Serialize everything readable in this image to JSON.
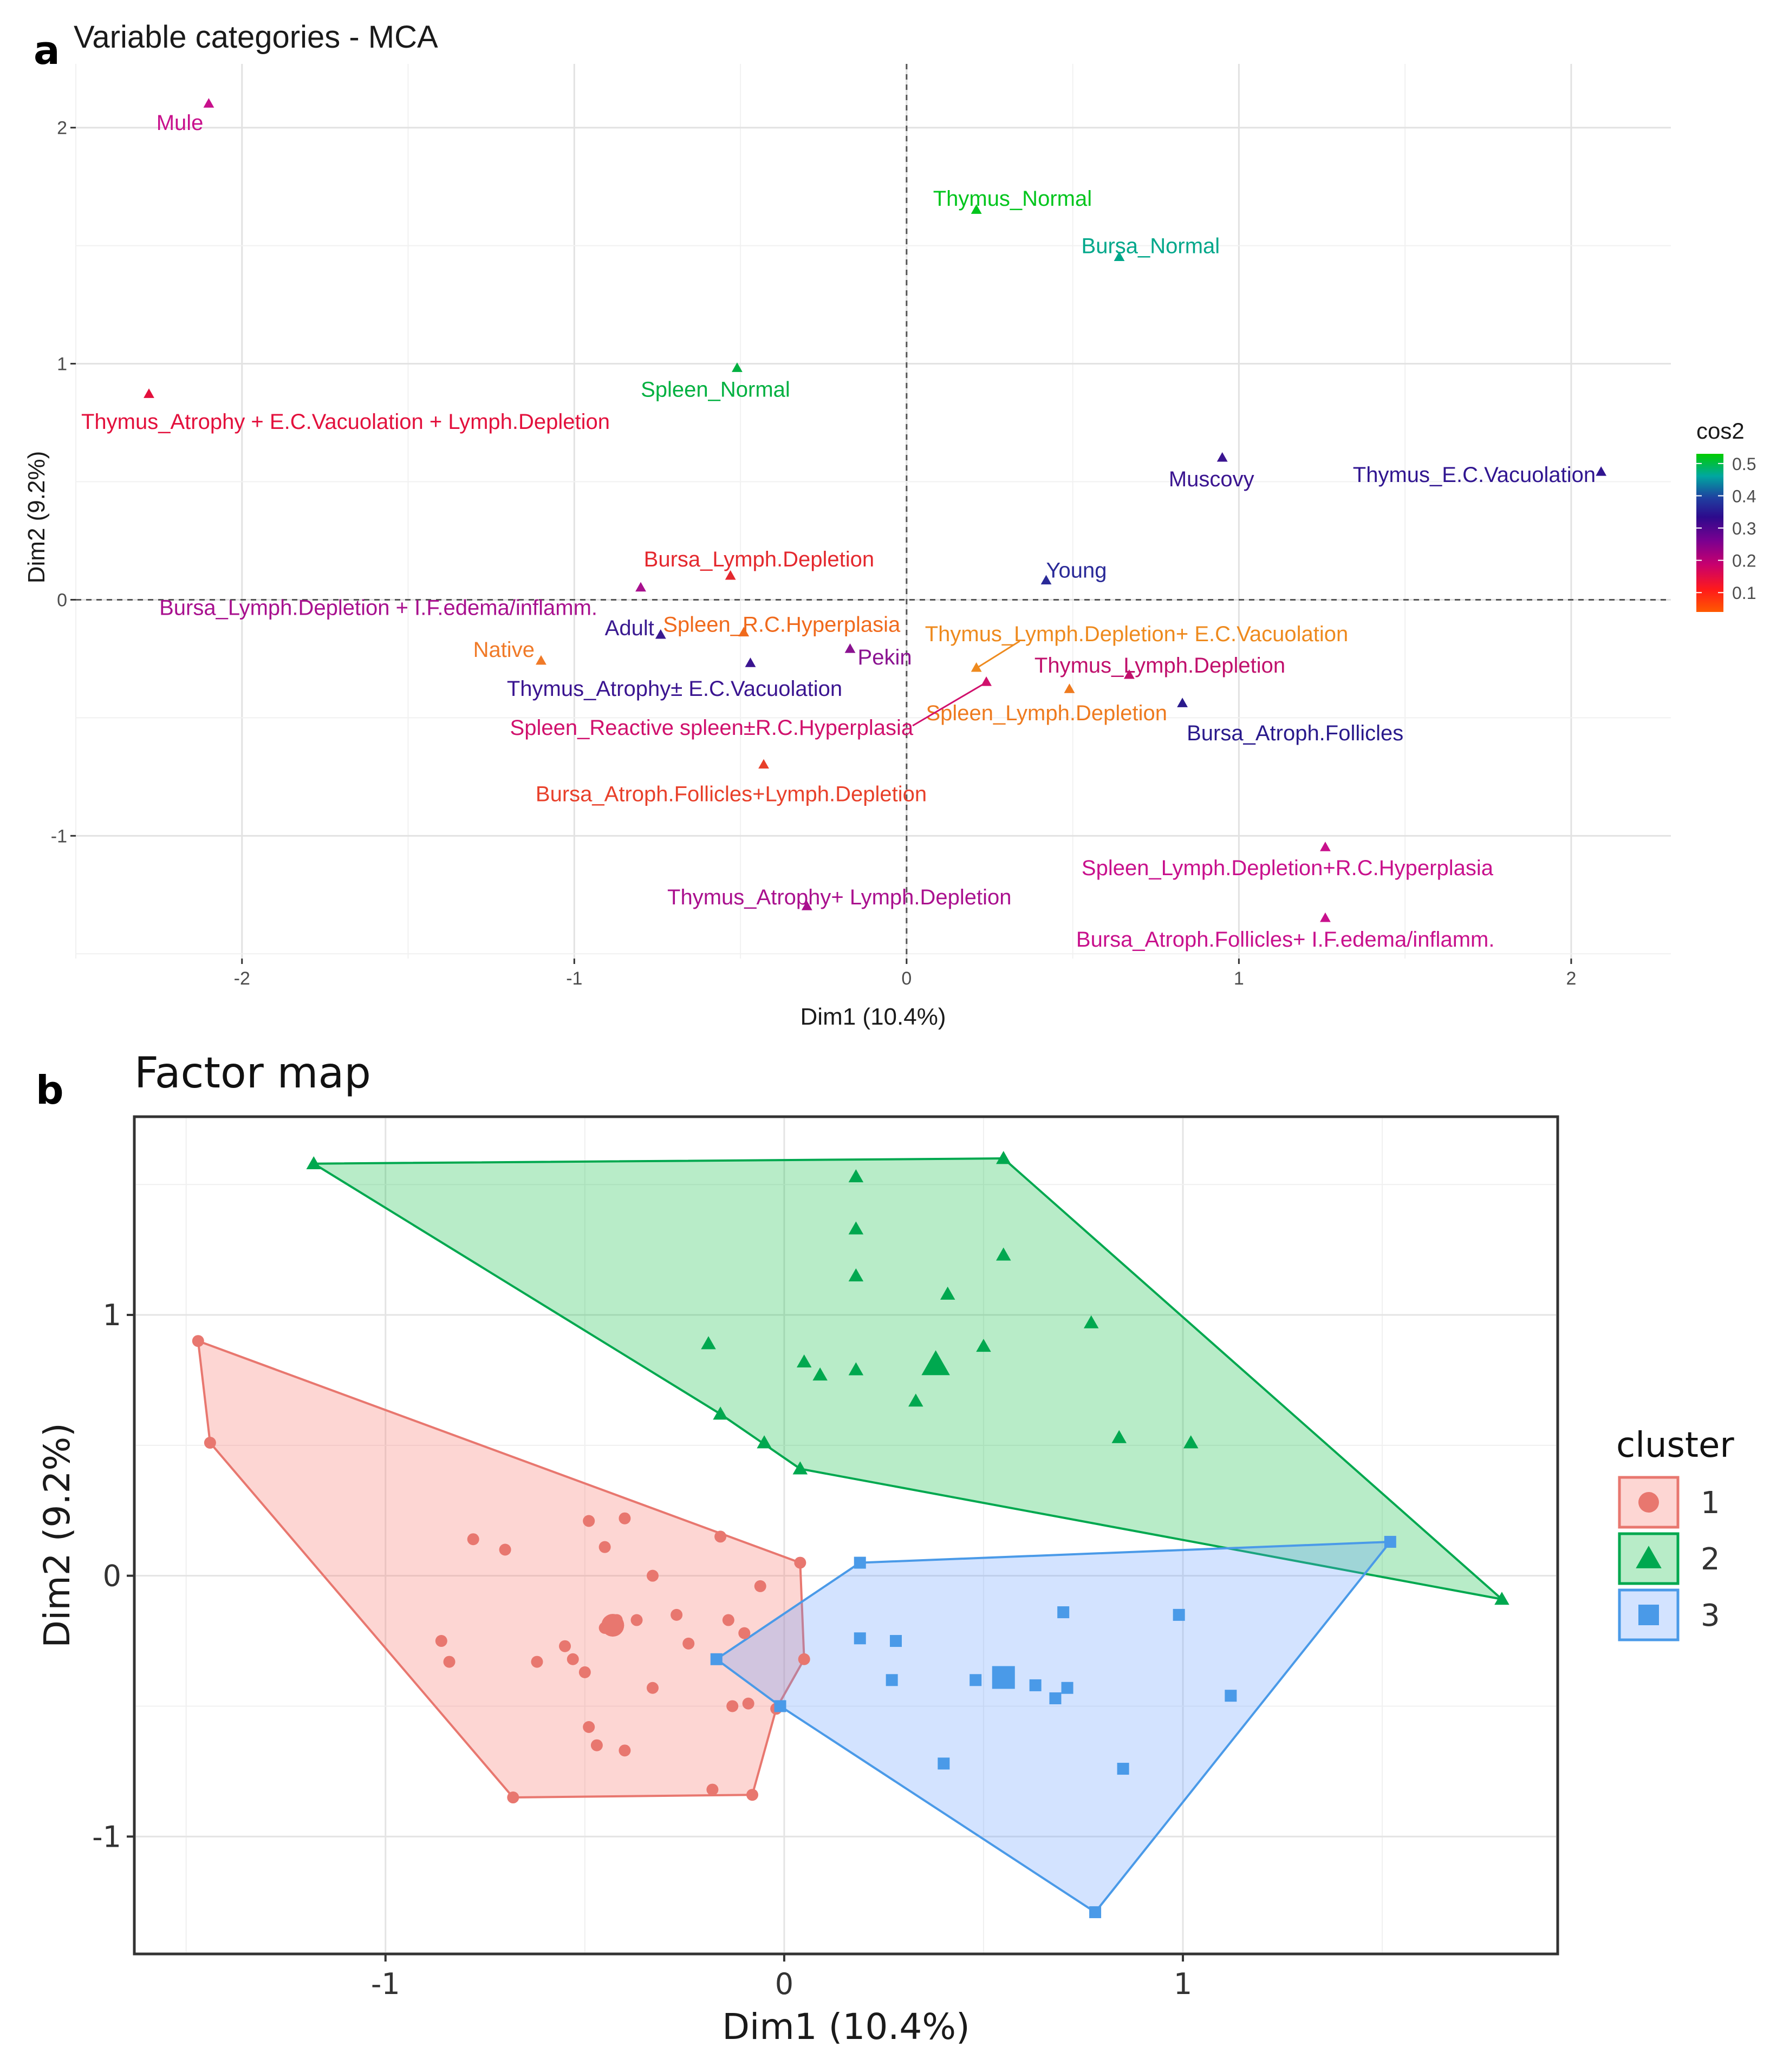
{
  "panel_a_letter": "a",
  "panel_b_letter": "b",
  "chart_data": [
    {
      "type": "scatter",
      "title": "Variable categories - MCA",
      "xlabel": "Dim1 (10.4%)",
      "ylabel": "Dim2 (9.2%)",
      "xlim": [
        -2.5,
        2.3
      ],
      "ylim": [
        -1.52,
        2.27
      ],
      "xticks": [
        -2,
        -1,
        0,
        1,
        2
      ],
      "yticks": [
        -1,
        0,
        1,
        2
      ],
      "grid": true,
      "reference_lines": {
        "x": 0,
        "y": 0,
        "style": "dashed"
      },
      "color_legend": {
        "title": "cos2",
        "ticks": [
          "0.5",
          "0.4",
          "0.3",
          "0.2",
          "0.1"
        ],
        "tick_values": [
          0.5,
          0.4,
          0.3,
          0.2,
          0.1
        ],
        "range": [
          0.04,
          0.53
        ],
        "gradient": [
          "#ff5a00",
          "#ff1a1a",
          "#c8006e",
          "#7a0090",
          "#2d0a8c",
          "#1f3fa0",
          "#00a7a0",
          "#00cc00"
        ]
      },
      "points": [
        {
          "label": "Mule",
          "x": -2.1,
          "y": 2.1,
          "cos2": 0.14,
          "color": "#c8108c"
        },
        {
          "label": "Thymus_Normal",
          "x": 0.21,
          "y": 1.65,
          "cos2": 0.52,
          "color": "#00c51c"
        },
        {
          "label": "Bursa_Normal",
          "x": 0.64,
          "y": 1.45,
          "cos2": 0.47,
          "color": "#00a78a"
        },
        {
          "label": "Spleen_Normal",
          "x": -0.51,
          "y": 0.98,
          "cos2": 0.5,
          "color": "#00b040"
        },
        {
          "label": "Thymus_Atrophy + E.C.Vacuolation + Lymph.Depletion",
          "x": -2.28,
          "y": 0.87,
          "cos2": 0.1,
          "color": "#e3103c"
        },
        {
          "label": "Muscovy",
          "x": 0.95,
          "y": 0.6,
          "cos2": 0.35,
          "color": "#3a1490"
        },
        {
          "label": "Thymus_E.C.Vacuolation",
          "x": 2.09,
          "y": 0.54,
          "cos2": 0.35,
          "color": "#301590"
        },
        {
          "label": "Young",
          "x": 0.42,
          "y": 0.08,
          "cos2": 0.36,
          "color": "#2a2a98"
        },
        {
          "label": "Bursa_Lymph.Depletion",
          "x": -0.53,
          "y": 0.1,
          "cos2": 0.1,
          "color": "#e4282e"
        },
        {
          "label": "Bursa_Lymph.Depletion + I.F.edema/inflamm.",
          "x": -0.8,
          "y": 0.05,
          "cos2": 0.16,
          "color": "#a8108e"
        },
        {
          "label": "Spleen_R.C.Hyperplasia",
          "x": -0.49,
          "y": -0.14,
          "cos2": 0.06,
          "color": "#f06a1c"
        },
        {
          "label": "Thymus_Lymph.Depletion+ E.C.Vacuolation",
          "x": 0.21,
          "y": -0.29,
          "cos2": 0.05,
          "color": "#ee8a1e"
        },
        {
          "label": "Native",
          "x": -1.1,
          "y": -0.26,
          "cos2": 0.06,
          "color": "#f07a28"
        },
        {
          "label": "Adult",
          "x": -0.74,
          "y": -0.15,
          "cos2": 0.33,
          "color": "#3a1a90"
        },
        {
          "label": "Pekin",
          "x": -0.17,
          "y": -0.21,
          "cos2": 0.2,
          "color": "#8a1290"
        },
        {
          "label": "Thymus_Lymph.Depletion",
          "x": 0.67,
          "y": -0.32,
          "cos2": 0.15,
          "color": "#c0106c"
        },
        {
          "label": "Thymus_Atrophy± E.C.Vacuolation",
          "x": -0.47,
          "y": -0.27,
          "cos2": 0.32,
          "color": "#3a1490"
        },
        {
          "label": "Spleen_Lymph.Depletion",
          "x": 0.49,
          "y": -0.38,
          "cos2": 0.07,
          "color": "#ee7a1e"
        },
        {
          "label": "Bursa_Atroph.Follicles",
          "x": 0.83,
          "y": -0.44,
          "cos2": 0.32,
          "color": "#2a1a8c"
        },
        {
          "label": "Spleen_Reactive spleen±R.C.Hyperplasia",
          "x": 0.24,
          "y": -0.35,
          "cos2": 0.14,
          "color": "#d0106c"
        },
        {
          "label": "Bursa_Atroph.Follicles+Lymph.Depletion",
          "x": -0.43,
          "y": -0.7,
          "cos2": 0.08,
          "color": "#e8402a"
        },
        {
          "label": "Spleen_Lymph.Depletion+R.C.Hyperplasia",
          "x": 1.26,
          "y": -1.05,
          "cos2": 0.14,
          "color": "#c8108c"
        },
        {
          "label": "Thymus_Atrophy+ Lymph.Depletion",
          "x": -0.3,
          "y": -1.3,
          "cos2": 0.17,
          "color": "#aa108e"
        },
        {
          "label": "Bursa_Atroph.Follicles+ I.F.edema/inflamm.",
          "x": 1.26,
          "y": -1.35,
          "cos2": 0.14,
          "color": "#c8108c"
        }
      ]
    },
    {
      "type": "scatter",
      "title": "Factor map",
      "xlabel": "Dim1 (10.4%)",
      "ylabel": "Dim2 (9.2%)",
      "xlim": [
        -1.63,
        1.94
      ],
      "ylim": [
        -1.45,
        1.76
      ],
      "xticks": [
        -1,
        0,
        1
      ],
      "yticks": [
        -1,
        0,
        1
      ],
      "grid": true,
      "legend": {
        "title": "cluster",
        "position": "right"
      },
      "clusters": [
        {
          "name": "1",
          "shape": "circle",
          "color": "#e8776f",
          "fill": "rgba(248,118,109,0.30)",
          "center": [
            -0.43,
            -0.19
          ],
          "hull": [
            [
              -1.47,
              0.9
            ],
            [
              0.04,
              0.05
            ],
            [
              0.05,
              -0.32
            ],
            [
              -0.02,
              -0.51
            ],
            [
              -0.08,
              -0.84
            ],
            [
              -0.68,
              -0.85
            ],
            [
              -1.44,
              0.51
            ]
          ],
          "points": [
            [
              -1.47,
              0.9
            ],
            [
              -1.44,
              0.51
            ],
            [
              -0.78,
              0.14
            ],
            [
              -0.7,
              0.1
            ],
            [
              -0.49,
              0.21
            ],
            [
              -0.4,
              0.22
            ],
            [
              -0.45,
              0.11
            ],
            [
              -0.16,
              0.15
            ],
            [
              -0.33,
              0.0
            ],
            [
              0.04,
              0.05
            ],
            [
              -0.06,
              -0.04
            ],
            [
              -0.42,
              -0.17
            ],
            [
              -0.45,
              -0.2
            ],
            [
              -0.37,
              -0.17
            ],
            [
              -0.27,
              -0.15
            ],
            [
              -0.14,
              -0.17
            ],
            [
              -0.1,
              -0.22
            ],
            [
              -0.24,
              -0.26
            ],
            [
              -0.86,
              -0.25
            ],
            [
              -0.84,
              -0.33
            ],
            [
              -0.62,
              -0.33
            ],
            [
              -0.55,
              -0.27
            ],
            [
              -0.53,
              -0.32
            ],
            [
              -0.5,
              -0.37
            ],
            [
              -0.33,
              -0.43
            ],
            [
              -0.13,
              -0.5
            ],
            [
              -0.09,
              -0.49
            ],
            [
              -0.49,
              -0.58
            ],
            [
              -0.47,
              -0.65
            ],
            [
              -0.4,
              -0.67
            ],
            [
              -0.18,
              -0.82
            ],
            [
              -0.08,
              -0.84
            ],
            [
              -0.68,
              -0.85
            ],
            [
              0.05,
              -0.32
            ],
            [
              -0.02,
              -0.51
            ]
          ]
        },
        {
          "name": "2",
          "shape": "triangle",
          "color": "#00a84f",
          "fill": "rgba(0,186,56,0.28)",
          "center": [
            0.38,
            0.81
          ],
          "hull": [
            [
              -1.18,
              1.58
            ],
            [
              0.55,
              1.6
            ],
            [
              1.8,
              -0.09
            ],
            [
              0.04,
              0.41
            ],
            [
              -0.16,
              0.62
            ]
          ],
          "points": [
            [
              -1.18,
              1.58
            ],
            [
              0.55,
              1.6
            ],
            [
              0.18,
              1.53
            ],
            [
              0.18,
              1.33
            ],
            [
              0.18,
              1.15
            ],
            [
              0.55,
              1.23
            ],
            [
              0.41,
              1.08
            ],
            [
              0.77,
              0.97
            ],
            [
              -0.19,
              0.89
            ],
            [
              0.05,
              0.82
            ],
            [
              0.09,
              0.77
            ],
            [
              0.18,
              0.79
            ],
            [
              0.33,
              0.67
            ],
            [
              0.5,
              0.88
            ],
            [
              -0.16,
              0.62
            ],
            [
              -0.05,
              0.51
            ],
            [
              0.04,
              0.41
            ],
            [
              0.84,
              0.53
            ],
            [
              1.02,
              0.51
            ],
            [
              1.8,
              -0.09
            ]
          ]
        },
        {
          "name": "3",
          "shape": "square",
          "color": "#4a9ae8",
          "fill": "rgba(97,156,255,0.28)",
          "center": [
            0.55,
            -0.39
          ],
          "hull": [
            [
              1.52,
              0.13
            ],
            [
              0.19,
              0.05
            ],
            [
              -0.17,
              -0.32
            ],
            [
              -0.01,
              -0.5
            ],
            [
              0.78,
              -1.29
            ]
          ],
          "points": [
            [
              1.52,
              0.13
            ],
            [
              0.19,
              0.05
            ],
            [
              0.7,
              -0.14
            ],
            [
              0.99,
              -0.15
            ],
            [
              0.19,
              -0.24
            ],
            [
              0.28,
              -0.25
            ],
            [
              0.27,
              -0.4
            ],
            [
              -0.17,
              -0.32
            ],
            [
              0.48,
              -0.4
            ],
            [
              0.63,
              -0.42
            ],
            [
              0.71,
              -0.43
            ],
            [
              0.68,
              -0.47
            ],
            [
              1.12,
              -0.46
            ],
            [
              -0.01,
              -0.5
            ],
            [
              0.4,
              -0.72
            ],
            [
              0.85,
              -0.74
            ],
            [
              0.78,
              -1.29
            ]
          ]
        }
      ]
    }
  ]
}
